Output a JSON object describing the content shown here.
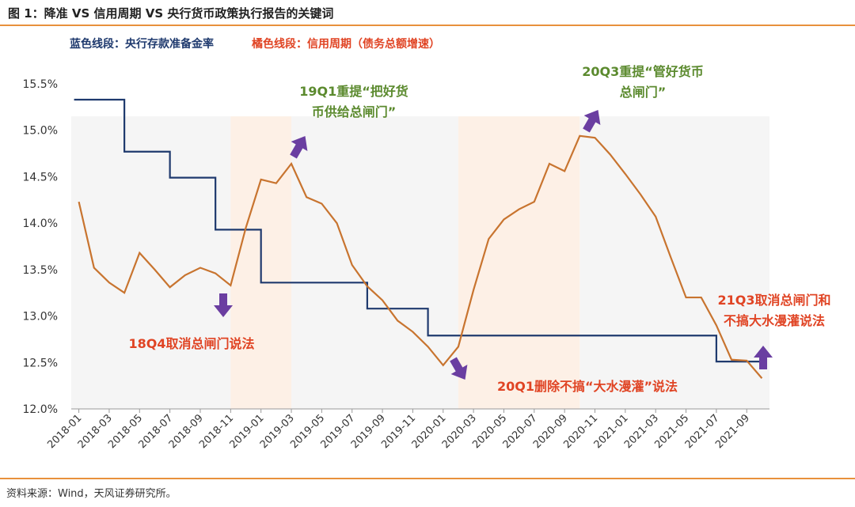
{
  "header": {
    "title": "图 1：降准 VS 信用周期 VS 央行货币政策执行报告的关键词",
    "legend_blue": "蓝色线段：央行存款准备金率",
    "legend_orange": "橘色线段：信用周期（债务总额增速）"
  },
  "footer": {
    "source": "资料来源：Wind，天风证券研究所。"
  },
  "colors": {
    "blue_line": "#1f3a6e",
    "orange_line": "#c8742f",
    "shade_gray": "#f5f5f5",
    "shade_peach": "#fdf0e6",
    "arrow": "#6a3ea1",
    "annotation_red": "#e04424",
    "annotation_green": "#5b8a2e",
    "rule": "#e8913c"
  },
  "chart_data": {
    "type": "line",
    "x": [
      "2018-01",
      "2018-02",
      "2018-03",
      "2018-04",
      "2018-05",
      "2018-06",
      "2018-07",
      "2018-08",
      "2018-09",
      "2018-10",
      "2018-11",
      "2018-12",
      "2019-01",
      "2019-02",
      "2019-03",
      "2019-04",
      "2019-05",
      "2019-06",
      "2019-07",
      "2019-08",
      "2019-09",
      "2019-10",
      "2019-11",
      "2019-12",
      "2020-01",
      "2020-02",
      "2020-03",
      "2020-04",
      "2020-05",
      "2020-06",
      "2020-07",
      "2020-08",
      "2020-09",
      "2020-10",
      "2020-11",
      "2020-12",
      "2021-01",
      "2021-02",
      "2021-03",
      "2021-04",
      "2021-05",
      "2021-06",
      "2021-07",
      "2021-08",
      "2021-09",
      "2021-10"
    ],
    "x_tick_labels": [
      "2018-01",
      "2018-03",
      "2018-05",
      "2018-07",
      "2018-09",
      "2018-11",
      "2019-01",
      "2019-03",
      "2019-05",
      "2019-07",
      "2019-09",
      "2019-11",
      "2020-01",
      "2020-03",
      "2020-05",
      "2020-07",
      "2020-09",
      "2020-11",
      "2021-01",
      "2021-03",
      "2021-05",
      "2021-07",
      "2021-09"
    ],
    "series": [
      {
        "name": "央行存款准备金率",
        "values": [
          15.33,
          15.33,
          15.33,
          14.77,
          14.77,
          14.77,
          14.49,
          14.49,
          14.49,
          13.93,
          13.93,
          13.93,
          13.36,
          13.36,
          13.36,
          13.36,
          13.36,
          13.36,
          13.36,
          13.08,
          13.08,
          13.08,
          13.08,
          12.79,
          12.79,
          12.79,
          12.79,
          12.79,
          12.79,
          12.79,
          12.79,
          12.79,
          12.79,
          12.79,
          12.79,
          12.79,
          12.79,
          12.79,
          12.79,
          12.79,
          12.79,
          12.79,
          12.51,
          12.51,
          12.51,
          12.51
        ]
      },
      {
        "name": "信用周期（债务总额增速）",
        "values": [
          14.23,
          13.52,
          13.36,
          13.25,
          13.68,
          13.5,
          13.31,
          13.44,
          13.52,
          13.46,
          13.33,
          13.95,
          14.47,
          14.43,
          14.64,
          14.28,
          14.21,
          14.0,
          13.55,
          13.32,
          13.17,
          12.95,
          12.83,
          12.67,
          12.47,
          12.67,
          13.28,
          13.83,
          14.04,
          14.15,
          14.23,
          14.64,
          14.56,
          14.94,
          14.92,
          14.74,
          14.53,
          14.31,
          14.07,
          13.63,
          13.2,
          13.2,
          12.9,
          12.53,
          12.52,
          12.33
        ]
      }
    ],
    "ylim": [
      12.0,
      15.5
    ],
    "y_ticks": [
      "12.0%",
      "12.5%",
      "13.0%",
      "13.5%",
      "14.0%",
      "14.5%",
      "15.0%",
      "15.5%"
    ],
    "shaded_periods": [
      {
        "start": "2018-01",
        "end": "2018-11",
        "style": "gray"
      },
      {
        "start": "2018-11",
        "end": "2019-03",
        "style": "peach"
      },
      {
        "start": "2019-03",
        "end": "2020-02",
        "style": "gray"
      },
      {
        "start": "2020-02",
        "end": "2020-10",
        "style": "peach"
      },
      {
        "start": "2020-10",
        "end": "2021-10",
        "style": "gray"
      }
    ],
    "annotations": [
      {
        "lines": [
          "18Q4取消总闸门说法"
        ],
        "color": "red",
        "arrow": "down"
      },
      {
        "lines": [
          "19Q1重提“把好货",
          "币供给总闸门”"
        ],
        "color": "green",
        "arrow": "up"
      },
      {
        "lines": [
          "20Q1删除不搞“大水漫灌”说法"
        ],
        "color": "red",
        "arrow": "down"
      },
      {
        "lines": [
          "20Q3重提“管好货币",
          "总闸门”"
        ],
        "color": "green",
        "arrow": "up"
      },
      {
        "lines": [
          "21Q3取消总闸门和",
          "不搞大水漫灌说法"
        ],
        "color": "red",
        "arrow": "up"
      }
    ],
    "grid": false,
    "legend": "top-left"
  }
}
